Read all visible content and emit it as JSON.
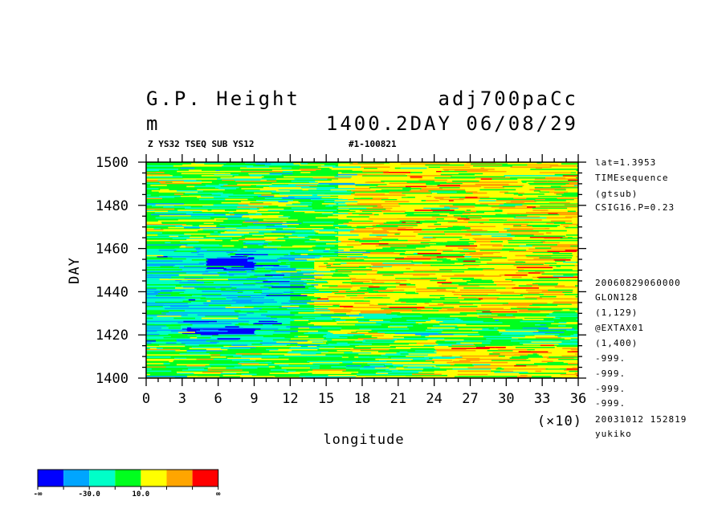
{
  "header": {
    "title_left": "G.P. Height",
    "title_right": "adj700paCc",
    "unit": "m",
    "time": "1400.2DAY 06/08/29",
    "sub_left": "Z YS32 TSEQ SUB YS12",
    "sub_right": "#1-100821"
  },
  "info_lines": [
    "lat=1.3953",
    "TIMEsequence",
    "(gtsub)",
    "CSIG16.P=0.23",
    "20060829060000",
    "GLON128",
    "(1,129)",
    "@EXTAX01",
    "(1,400)",
    "-999.",
    "-999.",
    "-999.",
    "-999.",
    "20031012 152819",
    "yukiko"
  ],
  "chart_data": {
    "type": "heatmap",
    "xlabel": "longitude",
    "ylabel": "DAY",
    "x_multiplier_label": "(×10)",
    "xlim": [
      0,
      36
    ],
    "ylim": [
      1400,
      1500
    ],
    "x_ticks": [
      "0",
      "3",
      "6",
      "9",
      "12",
      "15",
      "18",
      "21",
      "24",
      "27",
      "30",
      "33",
      "36"
    ],
    "y_ticks": [
      "1400",
      "1420",
      "1440",
      "1460",
      "1480",
      "1500"
    ],
    "colorbar": {
      "colors": [
        "#0000ff",
        "#00a5ff",
        "#00ffc8",
        "#00ff1e",
        "#ffff00",
        "#ffa500",
        "#ff0000"
      ],
      "labels": [
        "-∞",
        "-30.0",
        "10.0",
        "∞"
      ]
    },
    "regions": [
      {
        "x": [
          0,
          36
        ],
        "y": [
          1400,
          1500
        ],
        "level": "green"
      },
      {
        "x": [
          16,
          36
        ],
        "y": [
          1450,
          1500
        ],
        "level": "yellow"
      },
      {
        "x": [
          14,
          36
        ],
        "y": [
          1430,
          1455
        ],
        "level": "yellow"
      },
      {
        "x": [
          24,
          36
        ],
        "y": [
          1400,
          1415
        ],
        "level": "yellow"
      },
      {
        "x": [
          0,
          12
        ],
        "y": [
          1415,
          1460
        ],
        "level": "cyan"
      },
      {
        "x": [
          3,
          9
        ],
        "y": [
          1420,
          1423
        ],
        "level": "blue"
      },
      {
        "x": [
          5,
          9
        ],
        "y": [
          1450,
          1456
        ],
        "level": "blue"
      }
    ]
  }
}
